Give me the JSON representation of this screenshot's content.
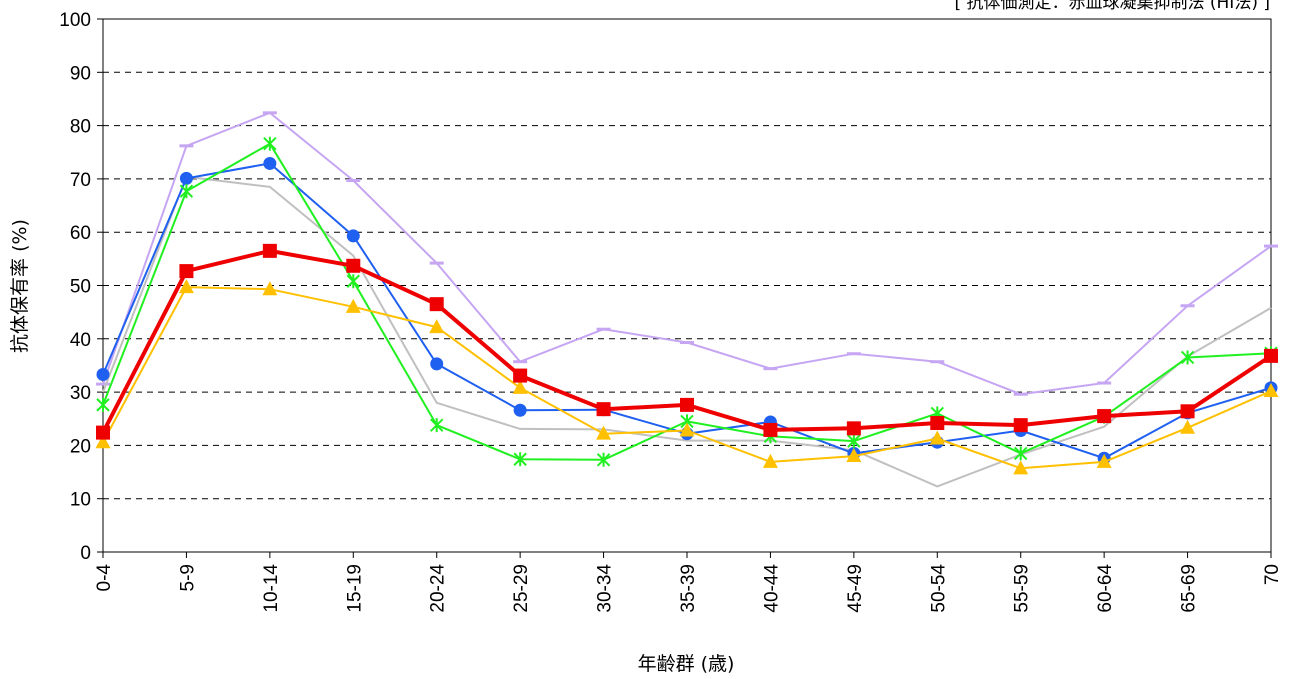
{
  "chart_data": {
    "type": "line",
    "title": "",
    "note": "[ 抗体価測定：赤血球凝集抑制法 (HI法) ]",
    "xlabel": "年齢群 (歳)",
    "ylabel": "抗体保有率 (%)",
    "ylim": [
      0,
      100
    ],
    "yticks": [
      0,
      10,
      20,
      30,
      40,
      50,
      60,
      70,
      80,
      90,
      100
    ],
    "grid": true,
    "categories": [
      "0-4",
      "5-9",
      "10-14",
      "15-19",
      "20-24",
      "25-29",
      "30-34",
      "35-39",
      "40-44",
      "45-49",
      "50-54",
      "55-59",
      "60-64",
      "65-69",
      "70"
    ],
    "series": [
      {
        "color": "#c6a6f2",
        "marker": "dash",
        "values": [
          31.5,
          76.2,
          82.4,
          69.7,
          54.2,
          35.7,
          41.8,
          39.3,
          34.4,
          37.2,
          35.7,
          29.6,
          31.7,
          46.2,
          57.4
        ]
      },
      {
        "color": "#c0c0c0",
        "marker": "none",
        "values": [
          30.0,
          70.4,
          68.5,
          55.6,
          28.0,
          23.1,
          23.0,
          20.9,
          20.9,
          19.1,
          12.3,
          18.3,
          23.5,
          36.7,
          45.8
        ]
      },
      {
        "color": "#2060f0",
        "marker": "circle",
        "values": [
          33.3,
          70.1,
          72.9,
          59.3,
          35.3,
          26.6,
          26.7,
          22.2,
          24.4,
          18.5,
          20.6,
          22.8,
          17.6,
          26.1,
          30.8
        ]
      },
      {
        "color": "#20f020",
        "marker": "star",
        "values": [
          27.6,
          67.7,
          76.6,
          50.8,
          23.8,
          17.4,
          17.3,
          24.5,
          21.7,
          20.8,
          26.0,
          18.5,
          25.4,
          36.5,
          37.3
        ]
      },
      {
        "color": "#ffc000",
        "marker": "triangle",
        "values": [
          20.6,
          49.7,
          49.3,
          46.0,
          42.2,
          30.8,
          22.2,
          22.8,
          16.9,
          18.0,
          21.3,
          15.7,
          16.9,
          23.3,
          30.2
        ]
      },
      {
        "color": "#ee0000",
        "marker": "square",
        "values": [
          22.4,
          52.7,
          56.5,
          53.7,
          46.5,
          33.1,
          26.8,
          27.6,
          22.9,
          23.2,
          24.2,
          23.8,
          25.5,
          26.4,
          36.8
        ]
      }
    ]
  }
}
